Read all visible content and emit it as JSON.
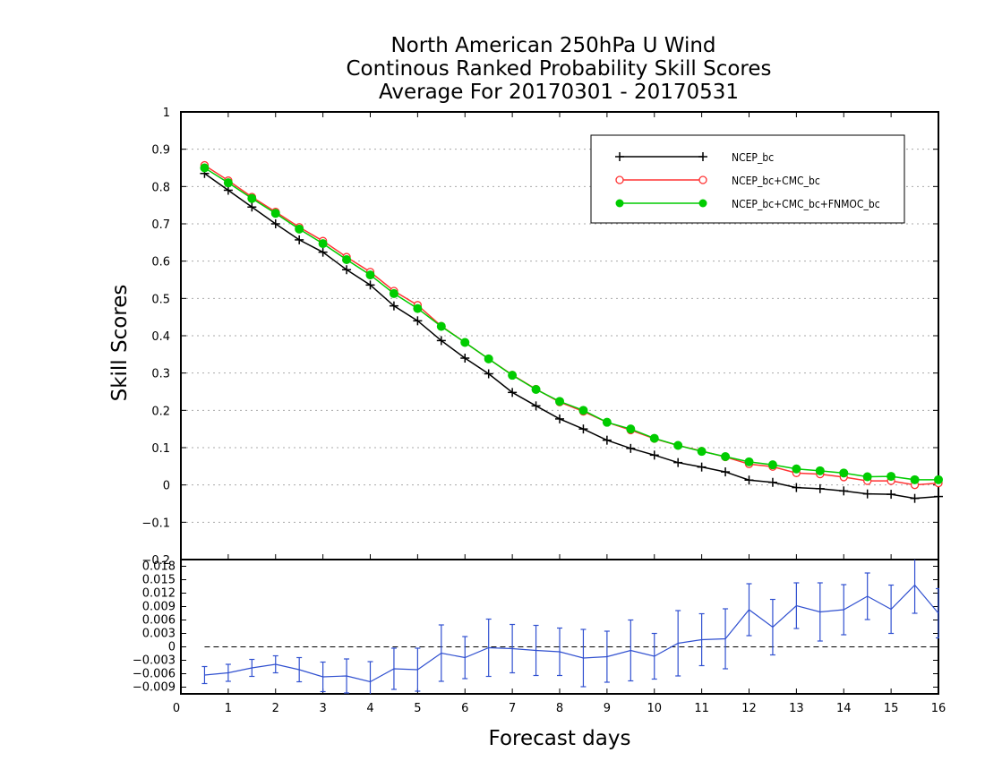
{
  "chart_data": [
    {
      "type": "line",
      "title_lines": [
        "North American 250hPa U Wind",
        "Continous Ranked Probability Skill Scores",
        "Average For 20170301 - 20170531"
      ],
      "xlabel": "Forecast days",
      "ylabel": "Skill Scores",
      "xlim": [
        0,
        16
      ],
      "ylim": [
        -0.2,
        1
      ],
      "x_ticks": [
        0,
        1,
        2,
        3,
        4,
        5,
        6,
        7,
        8,
        9,
        10,
        11,
        12,
        13,
        14,
        15,
        16
      ],
      "y_ticks": [
        -0.1,
        0,
        0.1,
        0.2,
        0.3,
        0.4,
        0.5,
        0.6,
        0.7,
        0.8,
        0.9,
        1
      ],
      "y_tick_labels": [
        "−0.1",
        "0",
        "0.1",
        "0.2",
        "0.3",
        "0.4",
        "0.5",
        "0.6",
        "0.7",
        "0.8",
        "0.9",
        "1"
      ],
      "bottom_tick_label": "−0.2",
      "grid": true,
      "legend_position": "top-right",
      "x": [
        0.5,
        1,
        1.5,
        2,
        2.5,
        3,
        3.5,
        4,
        4.5,
        5,
        5.5,
        6,
        6.5,
        7,
        7.5,
        8,
        8.5,
        9,
        9.5,
        10,
        10.5,
        11,
        11.5,
        12,
        12.5,
        13,
        13.5,
        14,
        14.5,
        15,
        15.5,
        16
      ],
      "series": [
        {
          "name": "NCEP_bc",
          "color": "#000000",
          "marker": "plus",
          "values": [
            0.835,
            0.79,
            0.745,
            0.7,
            0.657,
            0.624,
            0.577,
            0.536,
            0.48,
            0.44,
            0.387,
            0.34,
            0.298,
            0.248,
            0.212,
            0.177,
            0.15,
            0.12,
            0.098,
            0.08,
            0.06,
            0.048,
            0.035,
            0.013,
            0.007,
            -0.007,
            -0.01,
            -0.016,
            -0.024,
            -0.025,
            -0.036,
            -0.031
          ]
        },
        {
          "name": "NCEP_bc+CMC_bc",
          "color": "#ff3333",
          "marker": "open-circle",
          "values": [
            0.857,
            0.816,
            0.772,
            0.732,
            0.691,
            0.654,
            0.611,
            0.571,
            0.52,
            0.482,
            0.426,
            0.382,
            0.338,
            0.295,
            0.257,
            0.222,
            0.197,
            0.168,
            0.147,
            0.124,
            0.106,
            0.091,
            0.075,
            0.056,
            0.049,
            0.032,
            0.029,
            0.021,
            0.011,
            0.011,
            0,
            0.005
          ]
        },
        {
          "name": "NCEP_bc+CMC_bc+FNMOC_bc",
          "color": "#00cc00",
          "marker": "filled-circle",
          "values": [
            0.85,
            0.81,
            0.768,
            0.728,
            0.686,
            0.647,
            0.604,
            0.563,
            0.513,
            0.473,
            0.425,
            0.382,
            0.338,
            0.294,
            0.256,
            0.224,
            0.2,
            0.168,
            0.15,
            0.125,
            0.106,
            0.09,
            0.076,
            0.062,
            0.054,
            0.043,
            0.038,
            0.032,
            0.022,
            0.023,
            0.014,
            0.014
          ]
        }
      ]
    },
    {
      "type": "line",
      "subtype": "difference-with-error-bars",
      "xlim": [
        0,
        16
      ],
      "ylim": [
        -0.0105,
        0.0195
      ],
      "y_ticks": [
        -0.009,
        -0.006,
        -0.003,
        0,
        0.003,
        0.006,
        0.009,
        0.012,
        0.015,
        0.018
      ],
      "y_tick_labels": [
        "−0.009",
        "−0.006",
        "−0.003",
        "0",
        "0.003",
        "0.006",
        "0.009",
        "0.012",
        "0.015",
        "0.018"
      ],
      "x_tick_labels": [
        "0",
        "1",
        "2",
        "3",
        "4",
        "5",
        "6",
        "7",
        "8",
        "9",
        "10",
        "11",
        "12",
        "13",
        "14",
        "15",
        "16"
      ],
      "zero_line_style": "dashed",
      "color": "#3050d0",
      "x": [
        0.5,
        1,
        1.5,
        2,
        2.5,
        3,
        3.5,
        4,
        4.5,
        5,
        5.5,
        6,
        6.5,
        7,
        7.5,
        8,
        8.5,
        9,
        9.5,
        10,
        10.5,
        11,
        11.5,
        12,
        12.5,
        13,
        13.5,
        14,
        14.5,
        15,
        15.5,
        16
      ],
      "values": [
        -0.0063,
        -0.0058,
        -0.0047,
        -0.0039,
        -0.0051,
        -0.0067,
        -0.0065,
        -0.0078,
        -0.0049,
        -0.0051,
        -0.0014,
        -0.0024,
        -0.0002,
        -0.0004,
        -0.0008,
        -0.0011,
        -0.0025,
        -0.0022,
        -0.0008,
        -0.0021,
        0.0008,
        0.0016,
        0.0018,
        0.0083,
        0.0044,
        0.0092,
        0.0078,
        0.0083,
        0.0113,
        0.0084,
        0.0138,
        0.0075
      ],
      "error": [
        0.0019,
        0.0019,
        0.0019,
        0.0019,
        0.0027,
        0.0033,
        0.0038,
        0.0045,
        0.0046,
        0.0048,
        0.0063,
        0.0047,
        0.0064,
        0.0054,
        0.0056,
        0.0053,
        0.0064,
        0.0057,
        0.0068,
        0.0051,
        0.0073,
        0.0058,
        0.0067,
        0.0058,
        0.0062,
        0.0051,
        0.0065,
        0.0056,
        0.0052,
        0.0054,
        0.0063,
        0.0055
      ]
    }
  ]
}
